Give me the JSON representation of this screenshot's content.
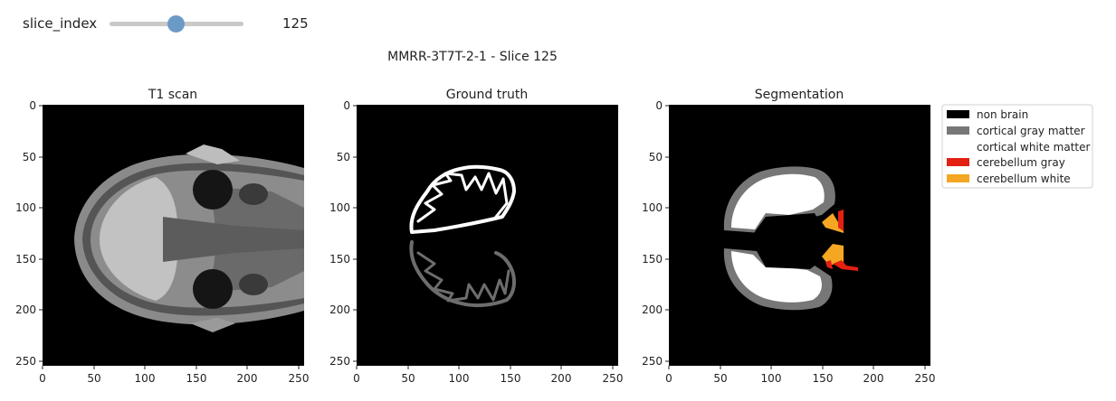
{
  "slider": {
    "label": "slice_index",
    "value": "125",
    "fraction": 0.49
  },
  "figure": {
    "suptitle": "MMRR-3T7T-2-1 - Slice 125"
  },
  "panels": [
    {
      "title": "T1 scan"
    },
    {
      "title": "Ground truth"
    },
    {
      "title": "Segmentation"
    }
  ],
  "axes": {
    "ticks": [
      "0",
      "50",
      "100",
      "150",
      "200",
      "250"
    ]
  },
  "legend": [
    {
      "label": "non brain",
      "color": "#000000"
    },
    {
      "label": "cortical gray matter",
      "color": "#777777"
    },
    {
      "label": "cortical white matter",
      "color": "#ffffff"
    },
    {
      "label": "cerebellum gray",
      "color": "#e32012"
    },
    {
      "label": "cerebellum white",
      "color": "#f5a623"
    }
  ],
  "colors": {
    "gray_matter": "#777777",
    "white_matter": "#ffffff",
    "cerebellum_gray": "#e32012",
    "cerebellum_white": "#f5a623"
  }
}
